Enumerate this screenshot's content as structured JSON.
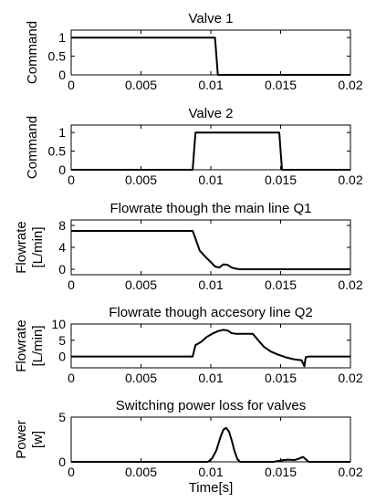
{
  "chart_data": [
    {
      "type": "line",
      "title": "Valve 1",
      "ylabel": [
        "Command"
      ],
      "xlabel": "",
      "xlim": [
        0,
        0.02
      ],
      "ylim": [
        0,
        1.2
      ],
      "xticks": [
        0,
        0.005,
        0.01,
        0.015,
        0.02
      ],
      "xtick_labels": [
        "0",
        "0.005",
        "0.01",
        "0.015",
        "0.02"
      ],
      "yticks": [
        0,
        0.5,
        1
      ],
      "ytick_labels": [
        "0",
        "0.5",
        "1"
      ],
      "grid": false,
      "series": [
        {
          "x": [
            0,
            0.0103,
            0.0105,
            0.02
          ],
          "y": [
            1,
            1,
            0,
            0
          ]
        }
      ]
    },
    {
      "type": "line",
      "title": "Valve 2",
      "ylabel": [
        "Command"
      ],
      "xlabel": "",
      "xlim": [
        0,
        0.02
      ],
      "ylim": [
        0,
        1.2
      ],
      "xticks": [
        0,
        0.005,
        0.01,
        0.015,
        0.02
      ],
      "xtick_labels": [
        "0",
        "0.005",
        "0.01",
        "0.015",
        "0.02"
      ],
      "yticks": [
        0,
        0.5,
        1
      ],
      "ytick_labels": [
        "0",
        "0.5",
        "1"
      ],
      "grid": false,
      "series": [
        {
          "x": [
            0,
            0.0087,
            0.0089,
            0.0149,
            0.0151,
            0.02
          ],
          "y": [
            0,
            0,
            1,
            1,
            0,
            0
          ]
        }
      ]
    },
    {
      "type": "line",
      "title": "Flowrate though the main line Q1",
      "ylabel": [
        "Flowrate",
        "[L/min]"
      ],
      "xlabel": "",
      "xlim": [
        0,
        0.02
      ],
      "ylim": [
        -1,
        9
      ],
      "xticks": [
        0,
        0.005,
        0.01,
        0.015,
        0.02
      ],
      "xtick_labels": [
        "0",
        "0.005",
        "0.01",
        "0.015",
        "0.02"
      ],
      "yticks": [
        0,
        4,
        8
      ],
      "ytick_labels": [
        "0",
        "4",
        "8"
      ],
      "grid": false,
      "series": [
        {
          "x": [
            0,
            0.0087,
            0.0089,
            0.0092,
            0.0096,
            0.01,
            0.0103,
            0.0106,
            0.0109,
            0.0112,
            0.0115,
            0.0118,
            0.0121,
            0.0125,
            0.02
          ],
          "y": [
            7,
            7,
            5.6,
            3.4,
            2.3,
            1.3,
            0.5,
            0.3,
            0.9,
            0.8,
            0.3,
            0.1,
            0,
            0,
            0
          ]
        }
      ]
    },
    {
      "type": "line",
      "title": "Flowrate though accesory line Q2",
      "ylabel": [
        "Flowrate",
        "[L/min]"
      ],
      "xlabel": "",
      "xlim": [
        0,
        0.02
      ],
      "ylim": [
        -3.5,
        10
      ],
      "xticks": [
        0,
        0.005,
        0.01,
        0.015,
        0.02
      ],
      "xtick_labels": [
        "0",
        "0.005",
        "0.01",
        "0.015",
        "0.02"
      ],
      "yticks": [
        0,
        5,
        10
      ],
      "ytick_labels": [
        "0",
        "5",
        "10"
      ],
      "grid": false,
      "series": [
        {
          "x": [
            0,
            0.0087,
            0.0089,
            0.0093,
            0.0097,
            0.0101,
            0.0105,
            0.0109,
            0.0112,
            0.0115,
            0.0118,
            0.0123,
            0.013,
            0.0134,
            0.0138,
            0.0143,
            0.0148,
            0.0154,
            0.016,
            0.0165,
            0.0167,
            0.0168,
            0.017,
            0.02
          ],
          "y": [
            0,
            0,
            3.5,
            4.5,
            6.0,
            7.0,
            7.8,
            8.2,
            8.0,
            7.2,
            7.0,
            7.0,
            7.0,
            5.0,
            3.0,
            1.5,
            0.6,
            -0.3,
            -0.9,
            -1.2,
            -3.0,
            -0.2,
            0,
            0
          ]
        }
      ]
    },
    {
      "type": "line",
      "title": "Switching power loss for valves",
      "ylabel": [
        "Power",
        "[w]"
      ],
      "xlabel": "Time[s]",
      "xlim": [
        0,
        0.02
      ],
      "ylim": [
        0,
        5
      ],
      "xticks": [
        0,
        0.005,
        0.01,
        0.015,
        0.02
      ],
      "xtick_labels": [
        "0",
        "0.005",
        "0.01",
        "0.015",
        "0.02"
      ],
      "yticks": [
        0,
        5
      ],
      "ytick_labels": [
        "0",
        "5"
      ],
      "grid": false,
      "series": [
        {
          "x": [
            0,
            0.0098,
            0.0101,
            0.0104,
            0.0107,
            0.0109,
            0.0111,
            0.0113,
            0.0115,
            0.0117,
            0.0119,
            0.0121,
            0.0145,
            0.015,
            0.0155,
            0.016,
            0.0163,
            0.0166,
            0.0168,
            0.017,
            0.02
          ],
          "y": [
            0,
            0,
            0.4,
            1.3,
            2.8,
            3.6,
            3.8,
            3.4,
            2.4,
            1.2,
            0.3,
            0,
            0,
            0.15,
            0.25,
            0.2,
            0.35,
            0.55,
            0.3,
            0,
            0
          ]
        }
      ]
    }
  ]
}
